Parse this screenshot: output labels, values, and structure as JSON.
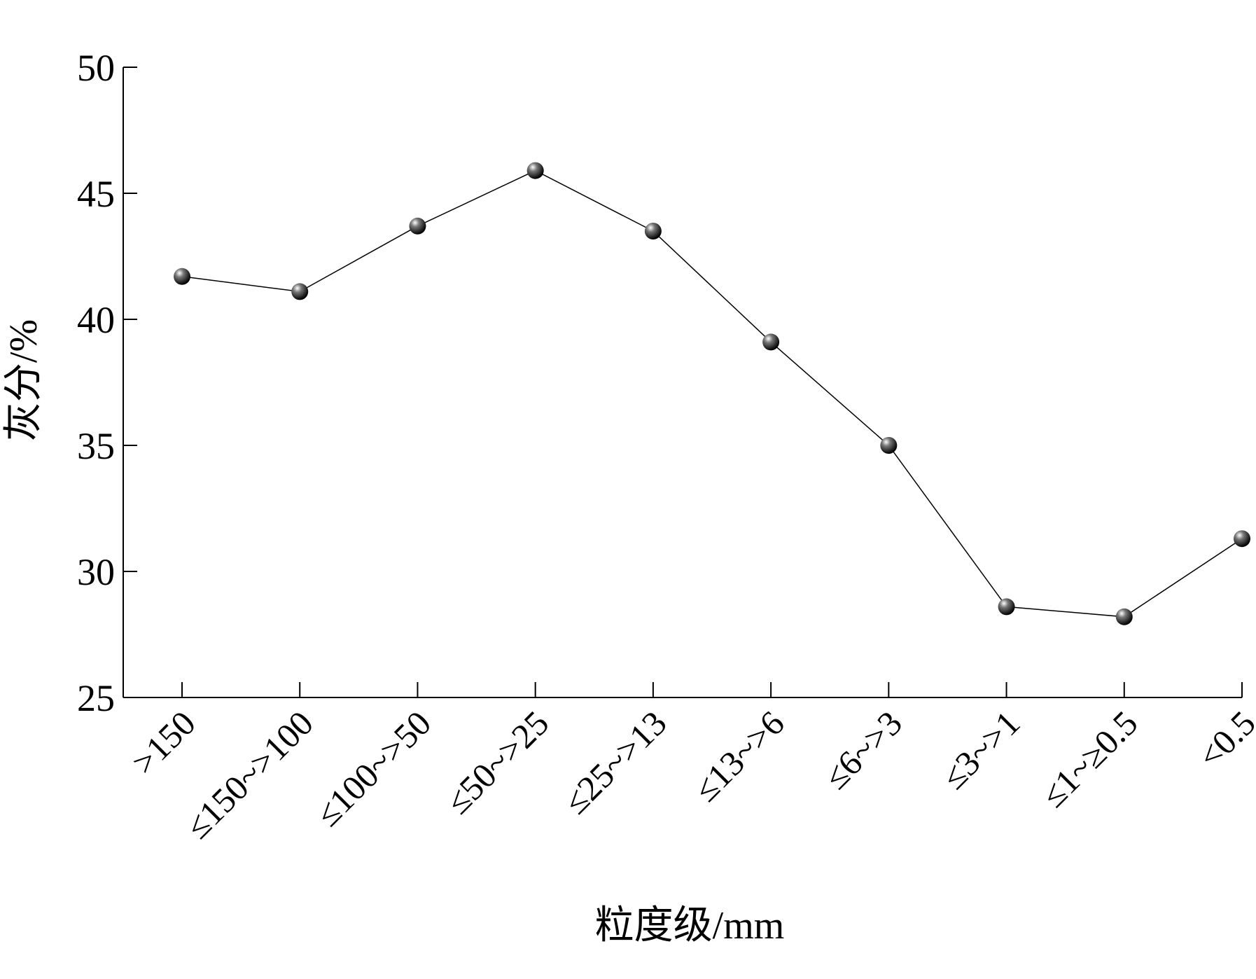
{
  "chart_data": {
    "type": "line",
    "x_label": "粒度级/mm",
    "y_label": "灰分/%",
    "categories": [
      ">150",
      "≤150~>100",
      "≤100~>50",
      "≤50~>25",
      "≤25~>13",
      "≤13~>6",
      "≤6~>3",
      "≤3~>1",
      "≤1~≥0.5",
      "<0.5"
    ],
    "values": [
      41.7,
      41.1,
      43.7,
      45.9,
      43.5,
      39.1,
      35.0,
      28.6,
      28.2,
      31.3
    ],
    "color": "#000000",
    "ylim": [
      25,
      50
    ],
    "yticks": [
      25,
      30,
      35,
      40,
      45,
      50
    ],
    "grid": false
  }
}
